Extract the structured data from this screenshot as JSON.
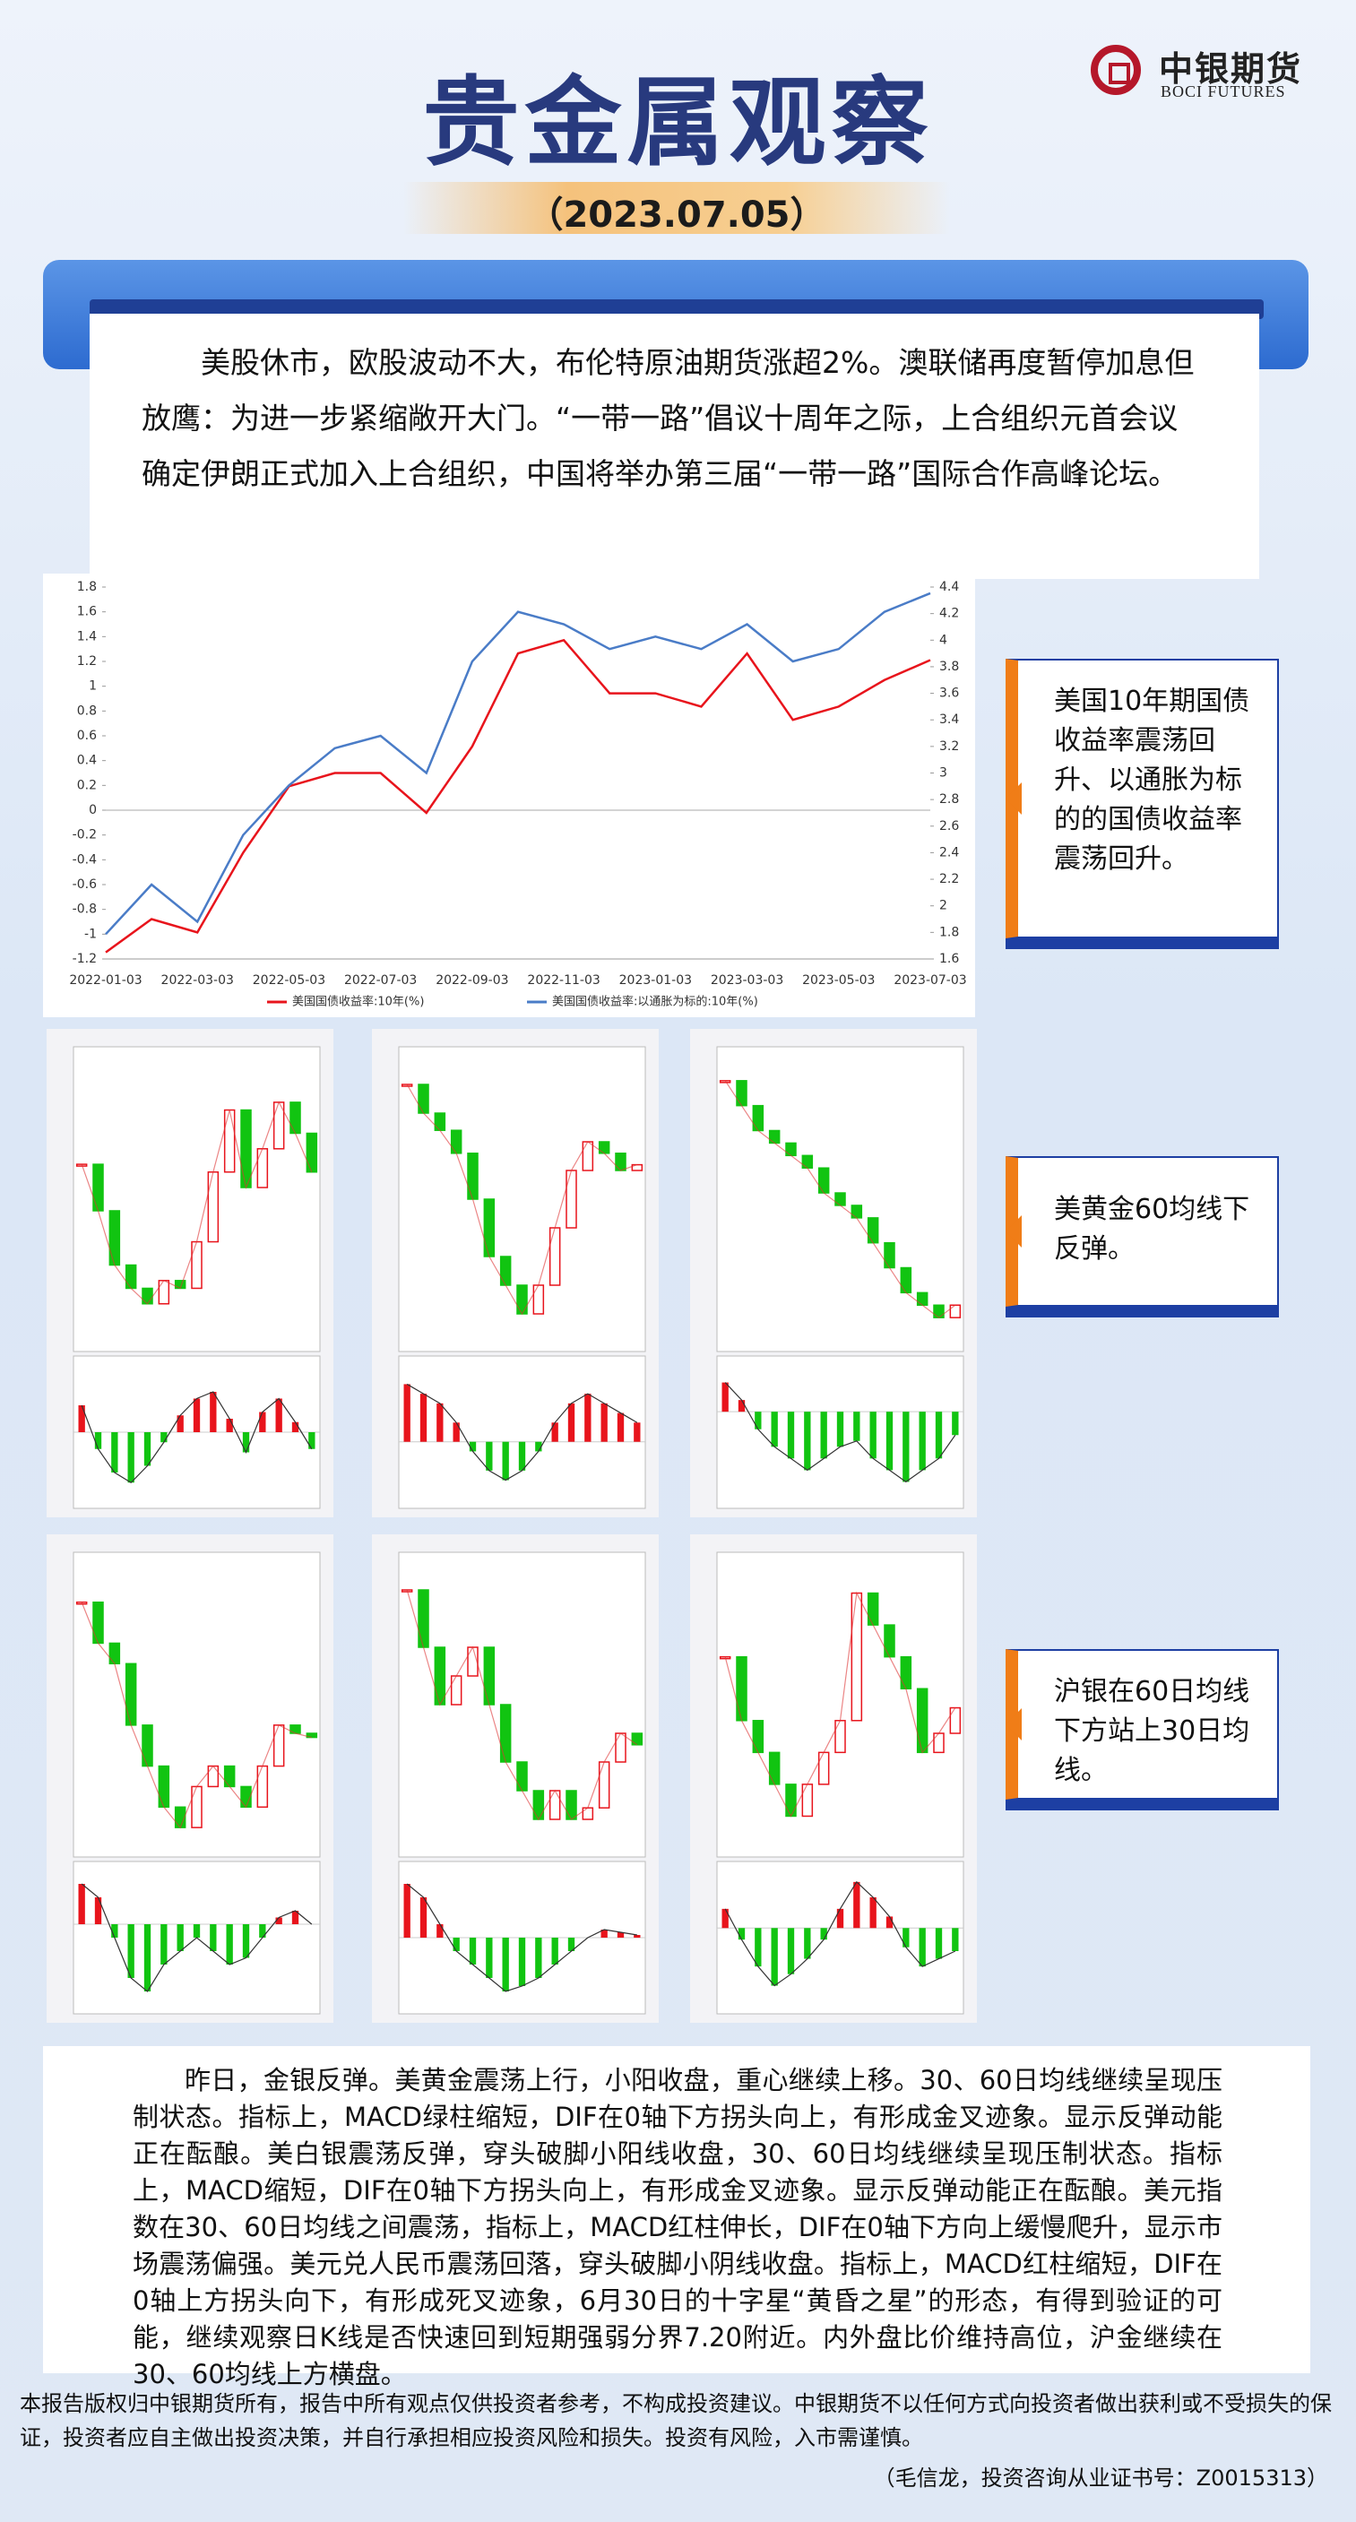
{
  "header": {
    "title": "贵金属观察",
    "date": "（2023.07.05）",
    "logo_cn": "中银期货",
    "logo_en": "BOCI FUTURES"
  },
  "summary": "美股休市，欧股波动不大，布伦特原油期货涨超2%。澳联储再度暂停加息但放鹰：为进一步紧缩敞开大门。“一带一路”倡议十周年之际，上合组织元首会议确定伊朗正式加入上合组织，中国将举办第三届“一带一路”国际合作高峰论坛。",
  "chart_data": {
    "type": "line",
    "categories": [
      "2022-01-03",
      null,
      "2022-03-03",
      null,
      "2022-05-03",
      null,
      "2022-07-03",
      null,
      "2022-09-03",
      null,
      "2022-11-03",
      null,
      "2023-01-03",
      null,
      "2023-03-03",
      null,
      "2023-05-03",
      null,
      "2023-07-03"
    ],
    "series": [
      {
        "name": "美国国债收益率:10年(%)",
        "color": "#e8141c",
        "axis": "y2",
        "values": [
          1.65,
          1.9,
          1.8,
          2.4,
          2.9,
          3.0,
          3.0,
          2.7,
          3.2,
          3.9,
          4.0,
          3.6,
          3.6,
          3.5,
          3.9,
          3.4,
          3.5,
          3.7,
          3.85
        ]
      },
      {
        "name": "美国国债收益率:以通胀为标的:10年(%)",
        "color": "#4a7cc7",
        "values": [
          -1.0,
          -0.6,
          -0.9,
          -0.2,
          0.2,
          0.5,
          0.6,
          0.3,
          1.2,
          1.6,
          1.5,
          1.3,
          1.4,
          1.3,
          1.5,
          1.2,
          1.3,
          1.6,
          1.75
        ]
      }
    ],
    "ylim": [
      -1.2,
      1.8
    ],
    "yticks": [
      -1.2,
      -1.0,
      -0.8,
      -0.6,
      -0.4,
      -0.2,
      0.0,
      0.2,
      0.4,
      0.6,
      0.8,
      1.0,
      1.2,
      1.4,
      1.6,
      1.8
    ],
    "y2lim": [
      1.6,
      4.4
    ],
    "y2ticks": [
      1.6,
      1.8,
      2.0,
      2.2,
      2.4,
      2.6,
      2.8,
      3.0,
      3.2,
      3.4,
      3.6,
      3.8,
      4.0,
      4.2,
      4.4
    ],
    "zero_line": true
  },
  "panels": [
    {
      "ylim": [
        1905,
        1942
      ],
      "values": [
        1928,
        1922,
        1915,
        1912,
        1910,
        1913,
        1912,
        1918,
        1927,
        1935,
        1925,
        1930,
        1936,
        1932,
        1927
      ],
      "macd_ylim": [
        -2,
        2
      ],
      "macd": [
        0.8,
        -0.5,
        -1.2,
        -1.5,
        -1.0,
        -0.3,
        0.5,
        1.0,
        1.2,
        0.4,
        -0.6,
        0.6,
        1.0,
        0.3,
        -0.5
      ]
    },
    {
      "ylim": [
        1895,
        1945
      ],
      "values": [
        1940,
        1935,
        1932,
        1928,
        1920,
        1910,
        1905,
        1900,
        1905,
        1915,
        1925,
        1930,
        1928,
        1925,
        1926
      ],
      "macd_ylim": [
        -3,
        4
      ],
      "macd": [
        3,
        2.5,
        2,
        1,
        -0.5,
        -1.5,
        -2,
        -1.5,
        -0.5,
        1,
        2,
        2.5,
        2,
        1.5,
        1
      ]
    },
    {
      "ylim": [
        1905,
        2020
      ],
      "values": [
        2010,
        2000,
        1990,
        1985,
        1980,
        1975,
        1965,
        1960,
        1955,
        1945,
        1935,
        1925,
        1920,
        1915,
        1920
      ],
      "macd_ylim": [
        -15,
        8
      ],
      "macd": [
        5,
        2,
        -3,
        -6,
        -8,
        -10,
        -8,
        -6,
        -5,
        -8,
        -10,
        -12,
        -10,
        -8,
        -4
      ]
    },
    {
      "ylim": [
        5200,
        5900
      ],
      "values": [
        5800,
        5700,
        5650,
        5500,
        5400,
        5300,
        5250,
        5350,
        5400,
        5350,
        5300,
        5400,
        5500,
        5480,
        5470
      ],
      "macd_ylim": [
        -60,
        40
      ],
      "macd": [
        30,
        20,
        -10,
        -40,
        -50,
        -30,
        -20,
        -10,
        -20,
        -30,
        -25,
        -10,
        5,
        10,
        0
      ]
    },
    {
      "ylim": [
        5250,
        5750
      ],
      "values": [
        5700,
        5600,
        5500,
        5550,
        5600,
        5500,
        5400,
        5350,
        5300,
        5350,
        5300,
        5320,
        5400,
        5450,
        5430
      ],
      "macd_ylim": [
        -25,
        25
      ],
      "macd": [
        20,
        15,
        5,
        -5,
        -10,
        -15,
        -20,
        -18,
        -15,
        -10,
        -5,
        0,
        3,
        2,
        1
      ]
    },
    {
      "ylim": [
        5300,
        5750
      ],
      "values": [
        5600,
        5500,
        5450,
        5400,
        5350,
        5400,
        5450,
        5500,
        5700,
        5650,
        5600,
        5550,
        5450,
        5480,
        5520
      ],
      "macd_ylim": [
        -20,
        15
      ],
      "macd": [
        5,
        -3,
        -10,
        -15,
        -12,
        -8,
        -3,
        5,
        12,
        8,
        3,
        -5,
        -10,
        -8,
        -6
      ]
    }
  ],
  "callouts": [
    "美国10年期国债收益率震荡回升、以通胀为标的的国债收益率震荡回升。",
    "美黄金60均线下反弹。",
    "沪银在60日均线下方站上30日均线。"
  ],
  "commentary": "昨日，金银反弹。美黄金震荡上行，小阳收盘，重心继续上移。30、60日均线继续呈现压制状态。指标上，MACD绿柱缩短，DIF在0轴下方拐头向上，有形成金叉迹象。显示反弹动能正在酝酿。美白银震荡反弹，穿头破脚小阳线收盘，30、60日均线继续呈现压制状态。指标上，MACD缩短，DIF在0轴下方拐头向上，有形成金叉迹象。显示反弹动能正在酝酿。美元指数在30、60日均线之间震荡，指标上，MACD红柱伸长，DIF在0轴下方向上缓慢爬升，显示市场震荡偏强。美元兑人民币震荡回落，穿头破脚小阴线收盘。指标上，MACD红柱缩短，DIF在0轴上方拐头向下，有形成死叉迹象，6月30日的十字星“黄昏之星”的形态，有得到验证的可能，继续观察日K线是否快速回到短期强弱分界7.20附近。内外盘比价维持高位，沪金继续在30、60均线上方横盘。",
  "footer": {
    "disclaimer": "本报告版权归中银期货所有，报告中所有观点仅供投资者参考，不构成投资建议。中银期货不以任何方式向投资者做出获利或不受损失的保证，投资者应自主做出投资决策，并自行承担相应投资风险和损失。投资有风险，入市需谨慎。",
    "author": "（毛信龙，投资咨询从业证书号：Z0015313）"
  }
}
